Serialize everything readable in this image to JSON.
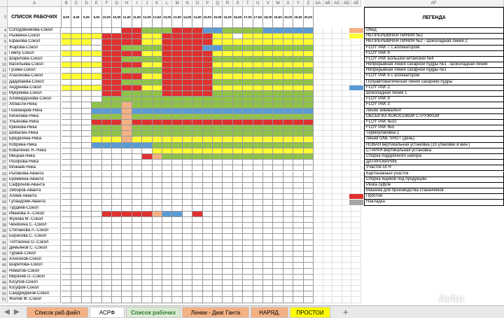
{
  "colors": {
    "red": "#e03030",
    "green": "#8fc349",
    "yellow": "#ffff33",
    "blue": "#5b9bd5",
    "peach": "#f4b184",
    "gray": "#a6a6a6"
  },
  "column_headers": [
    "A",
    "B",
    "C",
    "D",
    "E",
    "F",
    "G",
    "H",
    "I",
    "J",
    "K",
    "L",
    "M",
    "N",
    "O",
    "P",
    "Q",
    "R",
    "S",
    "T",
    "U",
    "V",
    "W",
    "X",
    "Y",
    "Z",
    "AA",
    "AB",
    "AC",
    "AD",
    "AE",
    "AF"
  ],
  "header_row": {
    "row_number": "3",
    "list_title": "СПИСОК РАБОЧИХ",
    "times": [
      "8,00",
      "8,50",
      "9,00",
      "9,50",
      "10,00",
      "10,50",
      "11,00",
      "11,50",
      "12,00",
      "12,50",
      "13,00",
      "13,50",
      "14,00",
      "14,50",
      "15,00",
      "15,50",
      "16,00",
      "16,50",
      "17,00",
      "17,50",
      "18,00",
      "18,50",
      "19,00",
      "19,50",
      "20,00"
    ],
    "legend_title": "ЛЕГЕНДА",
    "legend_col": "AF"
  },
  "rows": [
    {
      "n": "4",
      "name": "Солодовникова-Сокол",
      "cells": "......RRGGGRRRBBGGGGBBBBB"
    },
    {
      "n": "5",
      "name": "Рыжкина-Сокол",
      "cells": "YYYYRRRRYYRRRRRYY.YYYYYYY"
    },
    {
      "n": "6",
      "name": "Ефанова-Сокол",
      "cells": "YYY.RRRRYYRRRRRYYYYYYYYYY"
    },
    {
      "n": "7",
      "name": "Жарова-Сокол",
      "cells": "....RRGGGGRRRRBBGGGGGGGGG"
    },
    {
      "n": "8",
      "name": "Гимпу-Сокол",
      "cells": "YYYYRRRRYYRRRRRYYYYYYYYYY"
    },
    {
      "n": "9",
      "name": "Шарипова-Сокол",
      "cells": "....RRGGGGRRRRRGGGGGGGGGG"
    },
    {
      "n": "10",
      "name": "Васильева-Сокол",
      "cells": "YYYYRRRRYYRRRRRYYYYYYYYYY"
    },
    {
      "n": "11",
      "name": "Гусева-Сокол",
      "cells": "....RRGGGGRRRRRGGGGGGGGGG"
    },
    {
      "n": "12",
      "name": "Атахонова-Сокол",
      "cells": "YYYYRRRRYYRRRRRYYYYYYYYYY"
    },
    {
      "n": "13",
      "name": "Дадабаева-Сокол",
      "cells": "....RRGGGGRRRRRGGGGGGGGGG"
    },
    {
      "n": "14",
      "name": "Андреева-Сокол",
      "cells": "YYYYRRRRYYRRRRRYYYYYYYYYY"
    },
    {
      "n": "15",
      "name": "Мукумова-Сокол",
      "cells": "....RRGGGGRRRRRGGGGGGGGGG"
    },
    {
      "n": "16",
      "name": "Алимардонова-Сокол",
      "cells": "....GGGGGGGGGGGGGGGGGGGGG"
    },
    {
      "n": "17",
      "name": "Аббасли-Ника",
      "cells": "...GGGPGGGGGGGGGGGGGGGGGG"
    },
    {
      "n": "18",
      "name": "Пономарев-Ника",
      "cells": "...BBBPBBBBBBBBBBBBBBBBBB"
    },
    {
      "n": "19",
      "name": "Киселева-Ника",
      "cells": "...GGGPGGGGGGGGGGGGGGGGGG"
    },
    {
      "n": "20",
      "name": "Ульянова-Ника",
      "cells": "...RRRPRRRRRRRRRRRRRRRRRR"
    },
    {
      "n": "21",
      "name": "Крюкова-Ника",
      "cells": "...GGGPGGGGGGGGGGGGGGGGGG"
    },
    {
      "n": "22",
      "name": "Шибалин-Ника",
      "cells": "...GGGPGGGGGGGGGGGGGGGGGG"
    },
    {
      "n": "23",
      "name": "Бредихина-Ника",
      "cells": "...YYYPYYYYYYYYYYYYYYYYYY"
    },
    {
      "n": "24",
      "name": "Кобрина-Ника",
      "cells": "...BBBBBBGGGGGGGGGGGGGGGG"
    },
    {
      "n": "25",
      "name": "Коваленко Я.-Ника",
      "cells": ".........YYYYYYYYYYYYYYYY"
    },
    {
      "n": "26",
      "name": "Мицкая-Ника",
      "cells": "........RPGGGGGGGGGGGGGGG"
    },
    {
      "n": "27",
      "name": "Розорова-Ника",
      "cells": "........................."
    },
    {
      "n": "28",
      "name": "Можаев-Ника",
      "cells": "........................."
    },
    {
      "n": "29",
      "name": "Рыбакова-Аванта",
      "cells": "........................."
    },
    {
      "n": "30",
      "name": "Еремкина-Аванта",
      "cells": "........................."
    },
    {
      "n": "31",
      "name": "Сафронов-Аванта",
      "cells": "........................."
    },
    {
      "n": "32",
      "name": "Зиборов-Аванта",
      "cells": "........................."
    },
    {
      "n": "33",
      "name": "Алиев-Аванта",
      "cells": "........................."
    },
    {
      "n": "34",
      "name": "Гуландоми-Аванта",
      "cells": "........................."
    },
    {
      "n": "35",
      "name": "Турдиев-Сокол",
      "cells": "........................."
    },
    {
      "n": "36",
      "name": "Иванова А.-Сокол",
      "cells": "....RRRRRPBB.R..........."
    },
    {
      "n": "37",
      "name": "Жукова М.-Сокол",
      "cells": "........................."
    },
    {
      "n": "38",
      "name": "Чиняхина С.-Сокол",
      "cells": "........................."
    },
    {
      "n": "39",
      "name": "Степанова Л.-Сокол",
      "cells": "........................."
    },
    {
      "n": "40",
      "name": "Борисова С.-Сокол",
      "cells": "........................."
    },
    {
      "n": "41",
      "name": "Топталина О.-Сокол",
      "cells": "........................."
    },
    {
      "n": "42",
      "name": "Демьянов С.-Сокол",
      "cells": "........................."
    },
    {
      "n": "43",
      "name": "Тураев-Сокол",
      "cells": "........................."
    },
    {
      "n": "44",
      "name": "Алихонов-Сокол",
      "cells": "........................."
    },
    {
      "n": "45",
      "name": "Шарипова-Сокол",
      "cells": "........................."
    },
    {
      "n": "46",
      "name": "Нематов-Сокол",
      "cells": "........................."
    },
    {
      "n": "47",
      "name": "Мирзоев О.-Сокол",
      "cells": "........................."
    },
    {
      "n": "48",
      "name": "Юсупов-Сокол",
      "cells": "........................."
    },
    {
      "n": "49",
      "name": "Юсуфов-Сокол",
      "cells": "........................."
    },
    {
      "n": "50",
      "name": "Саидридинов-Сокол",
      "cells": "........................."
    },
    {
      "n": "51",
      "name": "Жиляв М.-Сокол",
      "cells": "........................."
    }
  ],
  "legend": [
    {
      "label": "Обед",
      "color": "peach"
    },
    {
      "label": "НЕПРЕРЫВНАЯ ЛИНИЯ №2",
      "color": "yellow"
    },
    {
      "label": "НЕПРЕРЫВНАЯ ЛИНИЯ №2 - Шоколадная линия 2",
      "color": ""
    },
    {
      "label": "FLOY PAK 7 с апликатором",
      "color": ""
    },
    {
      "label": "FLOY PAK 9",
      "color": ""
    },
    {
      "label": "FLOY PAK Большой китайский №4",
      "color": ""
    },
    {
      "label": "Непрерывная линия сахарной пудры №1 - Шоколадная линия",
      "color": ""
    },
    {
      "label": "Непрерывная линия сахарной пудры №1",
      "color": ""
    },
    {
      "label": "FLOY PAK 6 с апликатором",
      "color": ""
    },
    {
      "label": "Полуавтоматическая линия сахарной пудры",
      "color": ""
    },
    {
      "label": "FLOY PAK 2",
      "color": "blue"
    },
    {
      "label": "Шоколадная линия 1",
      "color": ""
    },
    {
      "label": "FLOY PAK 8",
      "color": ""
    },
    {
      "label": "FLOY PAK 3",
      "color": ""
    },
    {
      "label": "Линии эквивалент",
      "color": ""
    },
    {
      "label": "ОБСЫПКА КОКОСОВОЙ СТРУЖКОЙ",
      "color": ""
    },
    {
      "label": "FLOY PAK №10",
      "color": ""
    },
    {
      "label": "FLOY PAK №5",
      "color": ""
    },
    {
      "label": "Термоупаковка 1",
      "color": ""
    },
    {
      "label": "Линия ONE SHOT (день)",
      "color": ""
    },
    {
      "label": "НОВАЯ вертикальная установка (33 упаковки в мин.)",
      "color": ""
    },
    {
      "label": "СТАРАЯ вертикальная установка",
      "color": ""
    },
    {
      "label": "Сборка подарочного набора",
      "color": ""
    },
    {
      "label": "ДАТИРОВАНИЕ",
      "color": ""
    },
    {
      "label": "Участок ОГН",
      "color": ""
    },
    {
      "label": "Картонажный участок",
      "color": ""
    },
    {
      "label": "Сборка ящиков под продукцию",
      "color": ""
    },
    {
      "label": "Резка суфле",
      "color": ""
    },
    {
      "label": "Машина для производства стаканчиков",
      "color": ""
    },
    {
      "label": "Простой",
      "color": "red"
    },
    {
      "label": "Накладка",
      "color": "gray"
    }
  ],
  "tabs": {
    "items": [
      {
        "label": "Список раб.файл",
        "color": "#f4b184"
      },
      {
        "label": "АСРФ",
        "color": "#ffffff"
      },
      {
        "label": "Список рабочих",
        "color": "#d9ead3",
        "active": true
      },
      {
        "label": "Линии - Диаг Ганта",
        "color": "#f4b184"
      },
      {
        "label": "НАРЯД.",
        "color": "#f4b184"
      },
      {
        "label": "ПРОСТОИ",
        "color": "#ffff00"
      }
    ],
    "add_label": "+",
    "nav_prev": "◀",
    "nav_next": "▶"
  },
  "watermark": "Avito"
}
